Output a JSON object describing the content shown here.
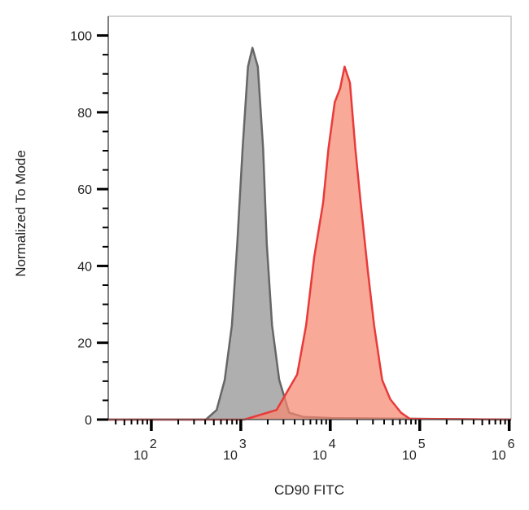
{
  "chart_data": {
    "type": "area",
    "xlabel": "CD90 FITC",
    "ylabel": "Normalized To Mode",
    "xscale": "log",
    "xlim": [
      33,
      1050000
    ],
    "ylim": [
      0,
      105
    ],
    "grid": false,
    "legend": "none",
    "x_ticks": [
      {
        "value": 100,
        "base": "10",
        "exp": "2"
      },
      {
        "value": 1000,
        "base": "10",
        "exp": "3"
      },
      {
        "value": 10000,
        "base": "10",
        "exp": "4"
      },
      {
        "value": 100000,
        "base": "10",
        "exp": "5"
      },
      {
        "value": 1000000,
        "base": "10",
        "exp": "6"
      }
    ],
    "y_ticks": [
      "0",
      "20",
      "40",
      "60",
      "80",
      "100"
    ],
    "series": [
      {
        "color": "#666666",
        "fill": "#b0afaf",
        "x": [
          33,
          407,
          537,
          661,
          794,
          912,
          1047,
          1202,
          1349,
          1549,
          1778,
          1950,
          2239,
          2692,
          3467,
          5012,
          10233,
          1050000
        ],
        "y": [
          0,
          0,
          2.5,
          10.3,
          24.5,
          45.7,
          70.6,
          91.9,
          96.8,
          91.9,
          70.6,
          45.7,
          24.5,
          10.3,
          1.8,
          0.7,
          0.4,
          0
        ]
      },
      {
        "color": "#e83a3a",
        "fill": "#f5886f",
        "x": [
          33,
          1096,
          2512,
          3467,
          4266,
          5370,
          6607,
          8318,
          9550,
          11220,
          12882,
          14454,
          16596,
          19055,
          21878,
          26303,
          30903,
          38019,
          46774,
          61660,
          77625,
          1050000
        ],
        "y": [
          0,
          0,
          2.5,
          8.1,
          11.7,
          24.5,
          42.2,
          56.4,
          70.6,
          82.6,
          86.2,
          91.9,
          87.7,
          70.6,
          56.4,
          38.7,
          24.5,
          10.3,
          5.3,
          1.8,
          0.2,
          0
        ]
      }
    ]
  }
}
